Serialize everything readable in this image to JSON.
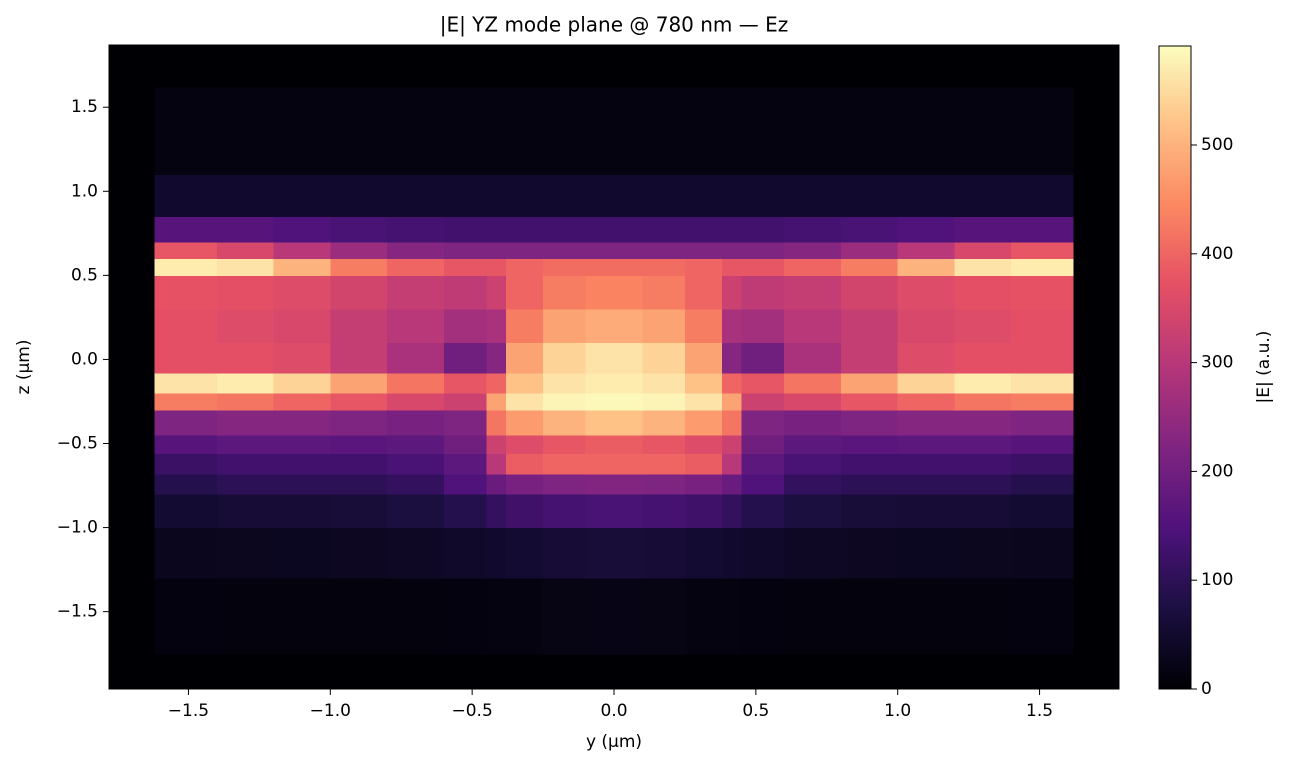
{
  "chart_data": {
    "type": "heatmap",
    "title": "|E| YZ mode plane @ 780 nm — Ez",
    "xlabel": "y (µm)",
    "ylabel": "z (µm)",
    "colorbar_label": "|E| (a.u.)",
    "colormap": "magma",
    "xlim": [
      -1.78,
      1.78
    ],
    "ylim": [
      -1.96,
      1.87
    ],
    "clim": [
      0,
      591
    ],
    "xticks": [
      {
        "value": -1.5,
        "label": "−1.5"
      },
      {
        "value": -1.0,
        "label": "−1.0"
      },
      {
        "value": -0.5,
        "label": "−0.5"
      },
      {
        "value": 0.0,
        "label": "0.0"
      },
      {
        "value": 0.5,
        "label": "0.5"
      },
      {
        "value": 1.0,
        "label": "1.0"
      },
      {
        "value": 1.5,
        "label": "1.5"
      }
    ],
    "yticks": [
      {
        "value": -1.5,
        "label": "−1.5"
      },
      {
        "value": -1.0,
        "label": "−1.0"
      },
      {
        "value": -0.5,
        "label": "−0.5"
      },
      {
        "value": 0.0,
        "label": "0.0"
      },
      {
        "value": 0.5,
        "label": "0.5"
      },
      {
        "value": 1.0,
        "label": "1.0"
      },
      {
        "value": 1.5,
        "label": "1.5"
      }
    ],
    "cticks": [
      0,
      100,
      200,
      300,
      400,
      500
    ],
    "x_edges": [
      -1.78,
      -1.62,
      -1.4,
      -1.2,
      -1.0,
      -0.8,
      -0.6,
      -0.45,
      -0.38,
      -0.25,
      -0.1,
      0.1,
      0.25,
      0.38,
      0.45,
      0.6,
      0.8,
      1.0,
      1.2,
      1.4,
      1.62,
      1.78
    ],
    "y_edges": [
      -1.96,
      -1.75,
      -1.3,
      -1.0,
      -0.8,
      -0.68,
      -0.56,
      -0.45,
      -0.3,
      -0.2,
      -0.08,
      0.1,
      0.3,
      0.5,
      0.6,
      0.7,
      0.85,
      1.1,
      1.62,
      1.87
    ],
    "z": [
      [
        0,
        0,
        0,
        0,
        0,
        0,
        0,
        0,
        0,
        0,
        0,
        0,
        0,
        0,
        0,
        0,
        0,
        0,
        0,
        0,
        0
      ],
      [
        0,
        12,
        10,
        10,
        10,
        10,
        12,
        14,
        16,
        18,
        20,
        18,
        16,
        14,
        12,
        10,
        10,
        10,
        10,
        12,
        0
      ],
      [
        0,
        30,
        32,
        34,
        36,
        40,
        45,
        50,
        55,
        60,
        62,
        60,
        55,
        50,
        45,
        40,
        36,
        34,
        32,
        30,
        0
      ],
      [
        0,
        55,
        60,
        60,
        62,
        70,
        90,
        110,
        125,
        135,
        140,
        135,
        125,
        110,
        90,
        70,
        62,
        60,
        60,
        55,
        0
      ],
      [
        0,
        90,
        100,
        100,
        100,
        110,
        150,
        190,
        210,
        220,
        225,
        220,
        210,
        190,
        150,
        110,
        100,
        100,
        100,
        90,
        0
      ],
      [
        0,
        120,
        130,
        130,
        130,
        140,
        170,
        300,
        390,
        400,
        400,
        400,
        390,
        300,
        170,
        140,
        130,
        130,
        130,
        120,
        0
      ],
      [
        0,
        160,
        170,
        170,
        165,
        170,
        200,
        330,
        360,
        380,
        390,
        380,
        360,
        330,
        200,
        170,
        165,
        170,
        170,
        160,
        0
      ],
      [
        0,
        220,
        230,
        230,
        220,
        210,
        220,
        420,
        470,
        500,
        520,
        500,
        470,
        420,
        220,
        210,
        220,
        230,
        230,
        220,
        0
      ],
      [
        0,
        430,
        420,
        400,
        380,
        350,
        330,
        480,
        560,
        580,
        585,
        580,
        560,
        480,
        330,
        350,
        380,
        400,
        420,
        430,
        0
      ],
      [
        0,
        560,
        570,
        540,
        480,
        420,
        380,
        400,
        520,
        560,
        570,
        560,
        520,
        400,
        380,
        420,
        480,
        540,
        570,
        560,
        0
      ],
      [
        0,
        370,
        370,
        360,
        320,
        280,
        200,
        230,
        480,
        540,
        560,
        540,
        480,
        230,
        200,
        280,
        320,
        360,
        370,
        370,
        0
      ],
      [
        0,
        370,
        360,
        350,
        320,
        300,
        270,
        280,
        430,
        480,
        490,
        480,
        430,
        280,
        270,
        300,
        320,
        350,
        360,
        370,
        0
      ],
      [
        0,
        375,
        370,
        360,
        340,
        320,
        310,
        330,
        400,
        430,
        440,
        430,
        400,
        330,
        310,
        320,
        340,
        360,
        370,
        375,
        0
      ],
      [
        0,
        570,
        560,
        500,
        430,
        400,
        380,
        380,
        400,
        410,
        410,
        410,
        400,
        380,
        380,
        400,
        430,
        500,
        560,
        570,
        0
      ],
      [
        0,
        380,
        350,
        300,
        260,
        230,
        220,
        220,
        220,
        220,
        220,
        220,
        220,
        220,
        220,
        230,
        260,
        300,
        350,
        380,
        0
      ],
      [
        0,
        160,
        160,
        150,
        140,
        135,
        130,
        130,
        130,
        130,
        130,
        130,
        130,
        130,
        130,
        135,
        140,
        150,
        160,
        160,
        0
      ],
      [
        0,
        50,
        50,
        50,
        50,
        50,
        50,
        50,
        50,
        50,
        50,
        50,
        50,
        50,
        50,
        50,
        50,
        50,
        50,
        50,
        0
      ],
      [
        0,
        15,
        15,
        15,
        15,
        15,
        15,
        15,
        15,
        15,
        15,
        15,
        15,
        15,
        15,
        15,
        15,
        15,
        15,
        15,
        0
      ],
      [
        0,
        0,
        0,
        0,
        0,
        0,
        0,
        0,
        0,
        0,
        0,
        0,
        0,
        0,
        0,
        0,
        0,
        0,
        0,
        0,
        0
      ]
    ]
  }
}
